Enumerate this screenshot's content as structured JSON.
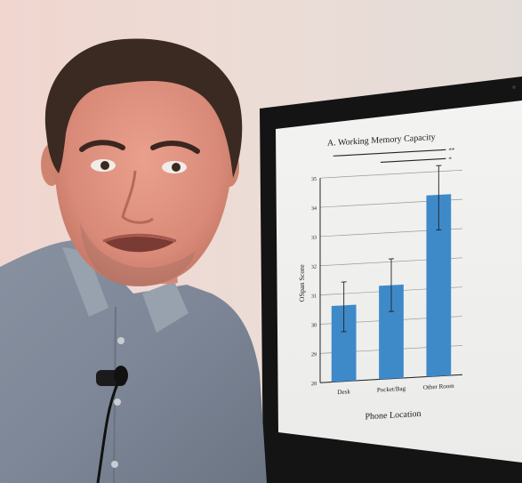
{
  "chart_data": {
    "type": "bar",
    "title": "A. Working Memory Capacity",
    "xlabel": "Phone Location",
    "ylabel": "OSpan Score",
    "categories": [
      "Desk",
      "Pocket/Bag",
      "Other Room"
    ],
    "values": [
      30.6,
      31.2,
      34.2
    ],
    "error_low": [
      29.7,
      30.3,
      33.0
    ],
    "error_high": [
      31.4,
      32.1,
      35.2
    ],
    "ylim": [
      28,
      35
    ],
    "yticks": [
      "28",
      "29",
      "30",
      "31",
      "32",
      "33",
      "34",
      "35"
    ],
    "grid": true,
    "significance": [
      {
        "label": "**",
        "from": "Desk",
        "to": "Other Room"
      },
      {
        "label": "*",
        "from": "Pocket/Bag",
        "to": "Other Room"
      }
    ],
    "bar_color": "#3e8ac9"
  }
}
